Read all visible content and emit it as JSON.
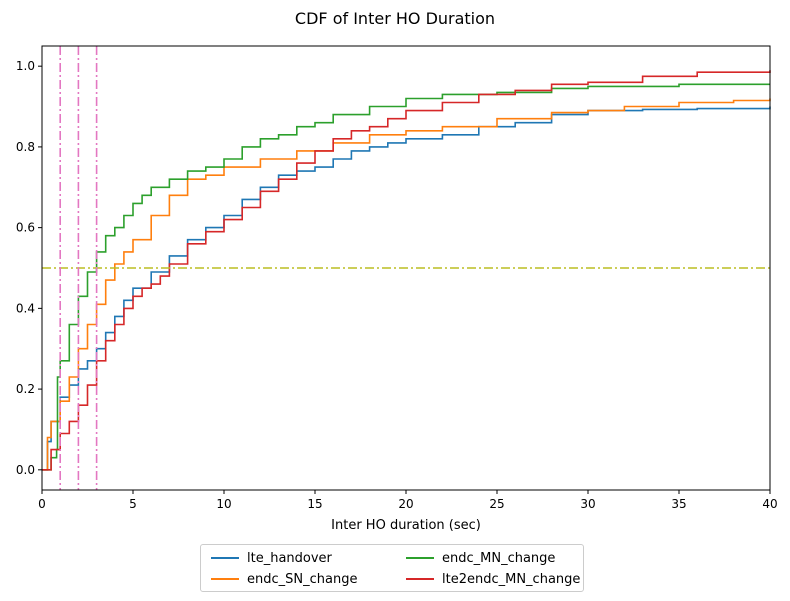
{
  "chart_data": {
    "type": "line",
    "title": "CDF of Inter HO Duration",
    "xlabel": "Inter HO duration (sec)",
    "ylabel": "",
    "xlim": [
      0,
      40
    ],
    "ylim": [
      -0.05,
      1.05
    ],
    "xticks": [
      "0",
      "5",
      "10",
      "15",
      "20",
      "25",
      "30",
      "35",
      "40"
    ],
    "yticks": [
      "0.0",
      "0.2",
      "0.4",
      "0.6",
      "0.8",
      "1.0"
    ],
    "grid": false,
    "legend_placement": "below",
    "reference_lines": [
      {
        "orientation": "horizontal",
        "value": 0.5,
        "color": "#bcbd22",
        "style": "dash-dot"
      },
      {
        "orientation": "vertical",
        "value": 1,
        "color": "#e377c2",
        "style": "dash-dot"
      },
      {
        "orientation": "vertical",
        "value": 2,
        "color": "#e377c2",
        "style": "dash-dot"
      },
      {
        "orientation": "vertical",
        "value": 3,
        "color": "#e377c2",
        "style": "dash-dot"
      }
    ],
    "series": [
      {
        "name": "lte_handover",
        "color": "#1f77b4",
        "x": [
          0,
          0.3,
          0.5,
          1,
          1.5,
          2,
          2.5,
          3,
          3.5,
          4,
          4.5,
          5,
          6,
          7,
          8,
          9,
          10,
          11,
          12,
          13,
          14,
          15,
          16,
          17,
          18,
          19,
          20,
          22,
          24,
          26,
          28,
          30,
          33,
          36,
          40
        ],
        "y": [
          0.0,
          0.07,
          0.12,
          0.18,
          0.21,
          0.25,
          0.27,
          0.3,
          0.34,
          0.38,
          0.42,
          0.45,
          0.49,
          0.53,
          0.57,
          0.6,
          0.63,
          0.67,
          0.7,
          0.73,
          0.74,
          0.75,
          0.77,
          0.79,
          0.8,
          0.81,
          0.82,
          0.83,
          0.85,
          0.86,
          0.88,
          0.89,
          0.893,
          0.895,
          0.9
        ]
      },
      {
        "name": "endc_SN_change",
        "color": "#ff7f0e",
        "x": [
          0,
          0.3,
          0.5,
          1,
          1.5,
          2,
          2.5,
          3,
          3.5,
          4,
          4.5,
          5,
          6,
          7,
          8,
          9,
          10,
          12,
          14,
          16,
          18,
          20,
          22,
          25,
          28,
          30,
          32,
          35,
          38,
          40
        ],
        "y": [
          0.0,
          0.08,
          0.12,
          0.17,
          0.23,
          0.3,
          0.36,
          0.41,
          0.47,
          0.51,
          0.54,
          0.57,
          0.63,
          0.68,
          0.72,
          0.73,
          0.75,
          0.77,
          0.79,
          0.81,
          0.83,
          0.84,
          0.85,
          0.87,
          0.885,
          0.89,
          0.9,
          0.91,
          0.915,
          0.92
        ]
      },
      {
        "name": "endc_MN_change",
        "color": "#2ca02c",
        "x": [
          0,
          0.5,
          0.8,
          0.85,
          1,
          1.5,
          2,
          2.5,
          3,
          3.5,
          4,
          4.5,
          5,
          5.5,
          6,
          7,
          8,
          9,
          10,
          11,
          12,
          13,
          14,
          15,
          16,
          18,
          20,
          22,
          25,
          28,
          30,
          35,
          40
        ],
        "y": [
          0.0,
          0.03,
          0.05,
          0.23,
          0.27,
          0.36,
          0.43,
          0.49,
          0.54,
          0.58,
          0.6,
          0.63,
          0.66,
          0.68,
          0.7,
          0.72,
          0.74,
          0.75,
          0.77,
          0.8,
          0.82,
          0.83,
          0.85,
          0.86,
          0.88,
          0.9,
          0.92,
          0.93,
          0.935,
          0.945,
          0.95,
          0.955,
          0.955
        ]
      },
      {
        "name": "lte2endc_MN_change",
        "color": "#d62728",
        "x": [
          0,
          0.5,
          1,
          1.5,
          2,
          2.5,
          3,
          3.5,
          4,
          4.5,
          5,
          5.5,
          6,
          6.5,
          7,
          8,
          9,
          10,
          11,
          12,
          13,
          14,
          15,
          16,
          17,
          18,
          19,
          20,
          22,
          24,
          26,
          28,
          30,
          33,
          36,
          40
        ],
        "y": [
          0.0,
          0.05,
          0.09,
          0.12,
          0.16,
          0.21,
          0.27,
          0.32,
          0.36,
          0.4,
          0.43,
          0.45,
          0.46,
          0.48,
          0.51,
          0.56,
          0.59,
          0.62,
          0.65,
          0.69,
          0.72,
          0.76,
          0.79,
          0.82,
          0.84,
          0.85,
          0.87,
          0.89,
          0.91,
          0.93,
          0.94,
          0.955,
          0.96,
          0.975,
          0.985,
          0.99
        ]
      }
    ]
  }
}
